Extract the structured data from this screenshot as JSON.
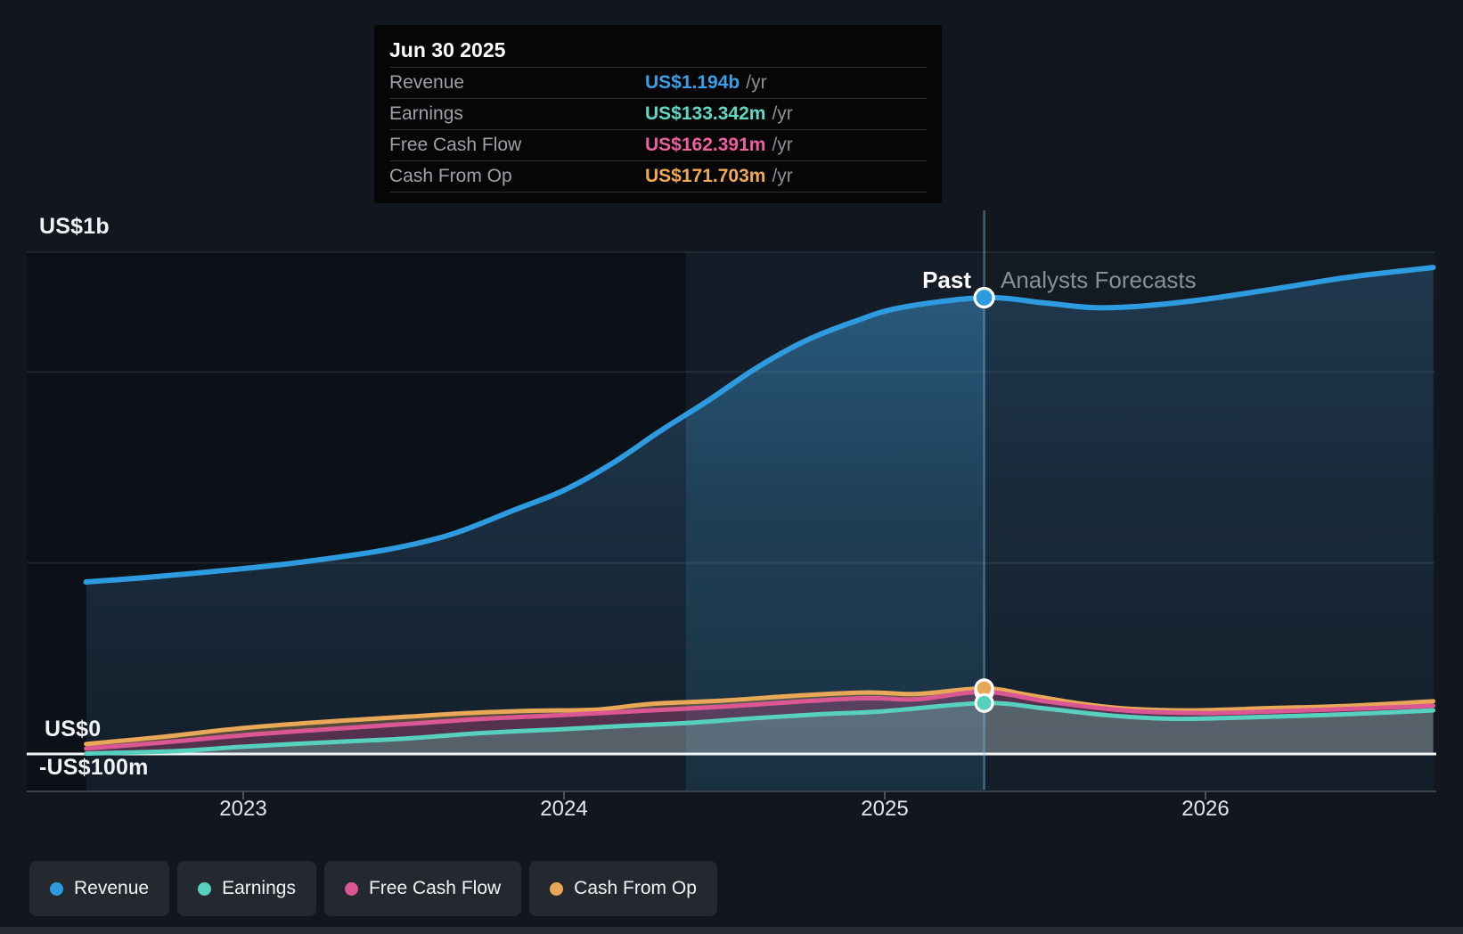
{
  "tooltip": {
    "date": "Jun 30 2025",
    "unit": "/yr",
    "rows": [
      {
        "label": "Revenue",
        "value": "US$1.194b",
        "color": "#3B9FE8"
      },
      {
        "label": "Earnings",
        "value": "US$133.342m",
        "color": "#5FD8C4"
      },
      {
        "label": "Free Cash Flow",
        "value": "US$162.391m",
        "color": "#ED5F9F"
      },
      {
        "label": "Cash From Op",
        "value": "US$171.703m",
        "color": "#F0A955"
      }
    ]
  },
  "sections": {
    "past": "Past",
    "forecast": "Analysts Forecasts"
  },
  "y_axis": {
    "top": "US$1b",
    "zero": "US$0",
    "negative": "-US$100m"
  },
  "x_axis": {
    "ticks": [
      "2023",
      "2024",
      "2025",
      "2026"
    ]
  },
  "legend": [
    {
      "label": "Revenue",
      "color": "#2E9BE0"
    },
    {
      "label": "Earnings",
      "color": "#57D0BE"
    },
    {
      "label": "Free Cash Flow",
      "color": "#DB5794"
    },
    {
      "label": "Cash From Op",
      "color": "#E9A858"
    }
  ],
  "chart_data": {
    "type": "area",
    "x_unit": "year",
    "y_unit": "US$ millions",
    "ylim": [
      -100,
      1310
    ],
    "x_ticks": [
      2023,
      2024,
      2025,
      2026
    ],
    "gridline_values": [
      1000,
      500,
      0
    ],
    "grid": "on",
    "legend_position": "bottom-left",
    "divider": {
      "date": "Jun 30 2025",
      "x_year": 2025.31
    },
    "highlight_band": {
      "from_year": 2024.38,
      "to_year": 2025.31
    },
    "series": [
      {
        "name": "Revenue",
        "color": "#2E9BE0",
        "marker_value": 1194,
        "points": [
          [
            2022.51,
            450
          ],
          [
            2022.7,
            462
          ],
          [
            2023.0,
            485
          ],
          [
            2023.2,
            504
          ],
          [
            2023.45,
            535
          ],
          [
            2023.65,
            575
          ],
          [
            2023.85,
            640
          ],
          [
            2024.0,
            690
          ],
          [
            2024.15,
            760
          ],
          [
            2024.3,
            845
          ],
          [
            2024.45,
            925
          ],
          [
            2024.6,
            1010
          ],
          [
            2024.75,
            1080
          ],
          [
            2024.9,
            1130
          ],
          [
            2025.05,
            1168
          ],
          [
            2025.31,
            1194
          ],
          [
            2025.5,
            1180
          ],
          [
            2025.65,
            1168
          ],
          [
            2025.8,
            1172
          ],
          [
            2026.0,
            1190
          ],
          [
            2026.2,
            1215
          ],
          [
            2026.45,
            1248
          ],
          [
            2026.71,
            1273
          ]
        ]
      },
      {
        "name": "Cash From Op",
        "color": "#E9A858",
        "marker_value": 171.703,
        "points": [
          [
            2022.51,
            26
          ],
          [
            2022.75,
            45
          ],
          [
            2023.0,
            68
          ],
          [
            2023.25,
            84
          ],
          [
            2023.5,
            97
          ],
          [
            2023.7,
            107
          ],
          [
            2023.9,
            113
          ],
          [
            2024.1,
            116
          ],
          [
            2024.27,
            131
          ],
          [
            2024.5,
            140
          ],
          [
            2024.75,
            154
          ],
          [
            2024.95,
            161
          ],
          [
            2025.1,
            157
          ],
          [
            2025.31,
            171.703
          ],
          [
            2025.45,
            154
          ],
          [
            2025.6,
            133
          ],
          [
            2025.75,
            119
          ],
          [
            2025.95,
            114
          ],
          [
            2026.2,
            120
          ],
          [
            2026.45,
            126
          ],
          [
            2026.71,
            138
          ]
        ]
      },
      {
        "name": "Free Cash Flow",
        "color": "#DB5794",
        "marker_value": 162.391,
        "points": [
          [
            2022.51,
            14
          ],
          [
            2022.75,
            30
          ],
          [
            2023.0,
            49
          ],
          [
            2023.25,
            64
          ],
          [
            2023.5,
            78
          ],
          [
            2023.75,
            92
          ],
          [
            2024.0,
            102
          ],
          [
            2024.27,
            114
          ],
          [
            2024.5,
            124
          ],
          [
            2024.75,
            138
          ],
          [
            2024.95,
            146
          ],
          [
            2025.1,
            143
          ],
          [
            2025.31,
            162.391
          ],
          [
            2025.5,
            138
          ],
          [
            2025.65,
            122
          ],
          [
            2025.8,
            111
          ],
          [
            2026.0,
            107
          ],
          [
            2026.2,
            111
          ],
          [
            2026.45,
            118
          ],
          [
            2026.71,
            126
          ]
        ]
      },
      {
        "name": "Earnings",
        "color": "#57D0BE",
        "marker_value": 133.342,
        "points": [
          [
            2022.51,
            1
          ],
          [
            2022.8,
            8
          ],
          [
            2023.0,
            19
          ],
          [
            2023.25,
            30
          ],
          [
            2023.5,
            40
          ],
          [
            2023.75,
            55
          ],
          [
            2024.0,
            65
          ],
          [
            2024.2,
            74
          ],
          [
            2024.4,
            82
          ],
          [
            2024.6,
            94
          ],
          [
            2024.8,
            104
          ],
          [
            2025.0,
            112
          ],
          [
            2025.31,
            133.342
          ],
          [
            2025.5,
            119
          ],
          [
            2025.7,
            101
          ],
          [
            2025.9,
            92
          ],
          [
            2026.1,
            95
          ],
          [
            2026.3,
            100
          ],
          [
            2026.5,
            106
          ],
          [
            2026.71,
            114
          ]
        ]
      }
    ]
  }
}
